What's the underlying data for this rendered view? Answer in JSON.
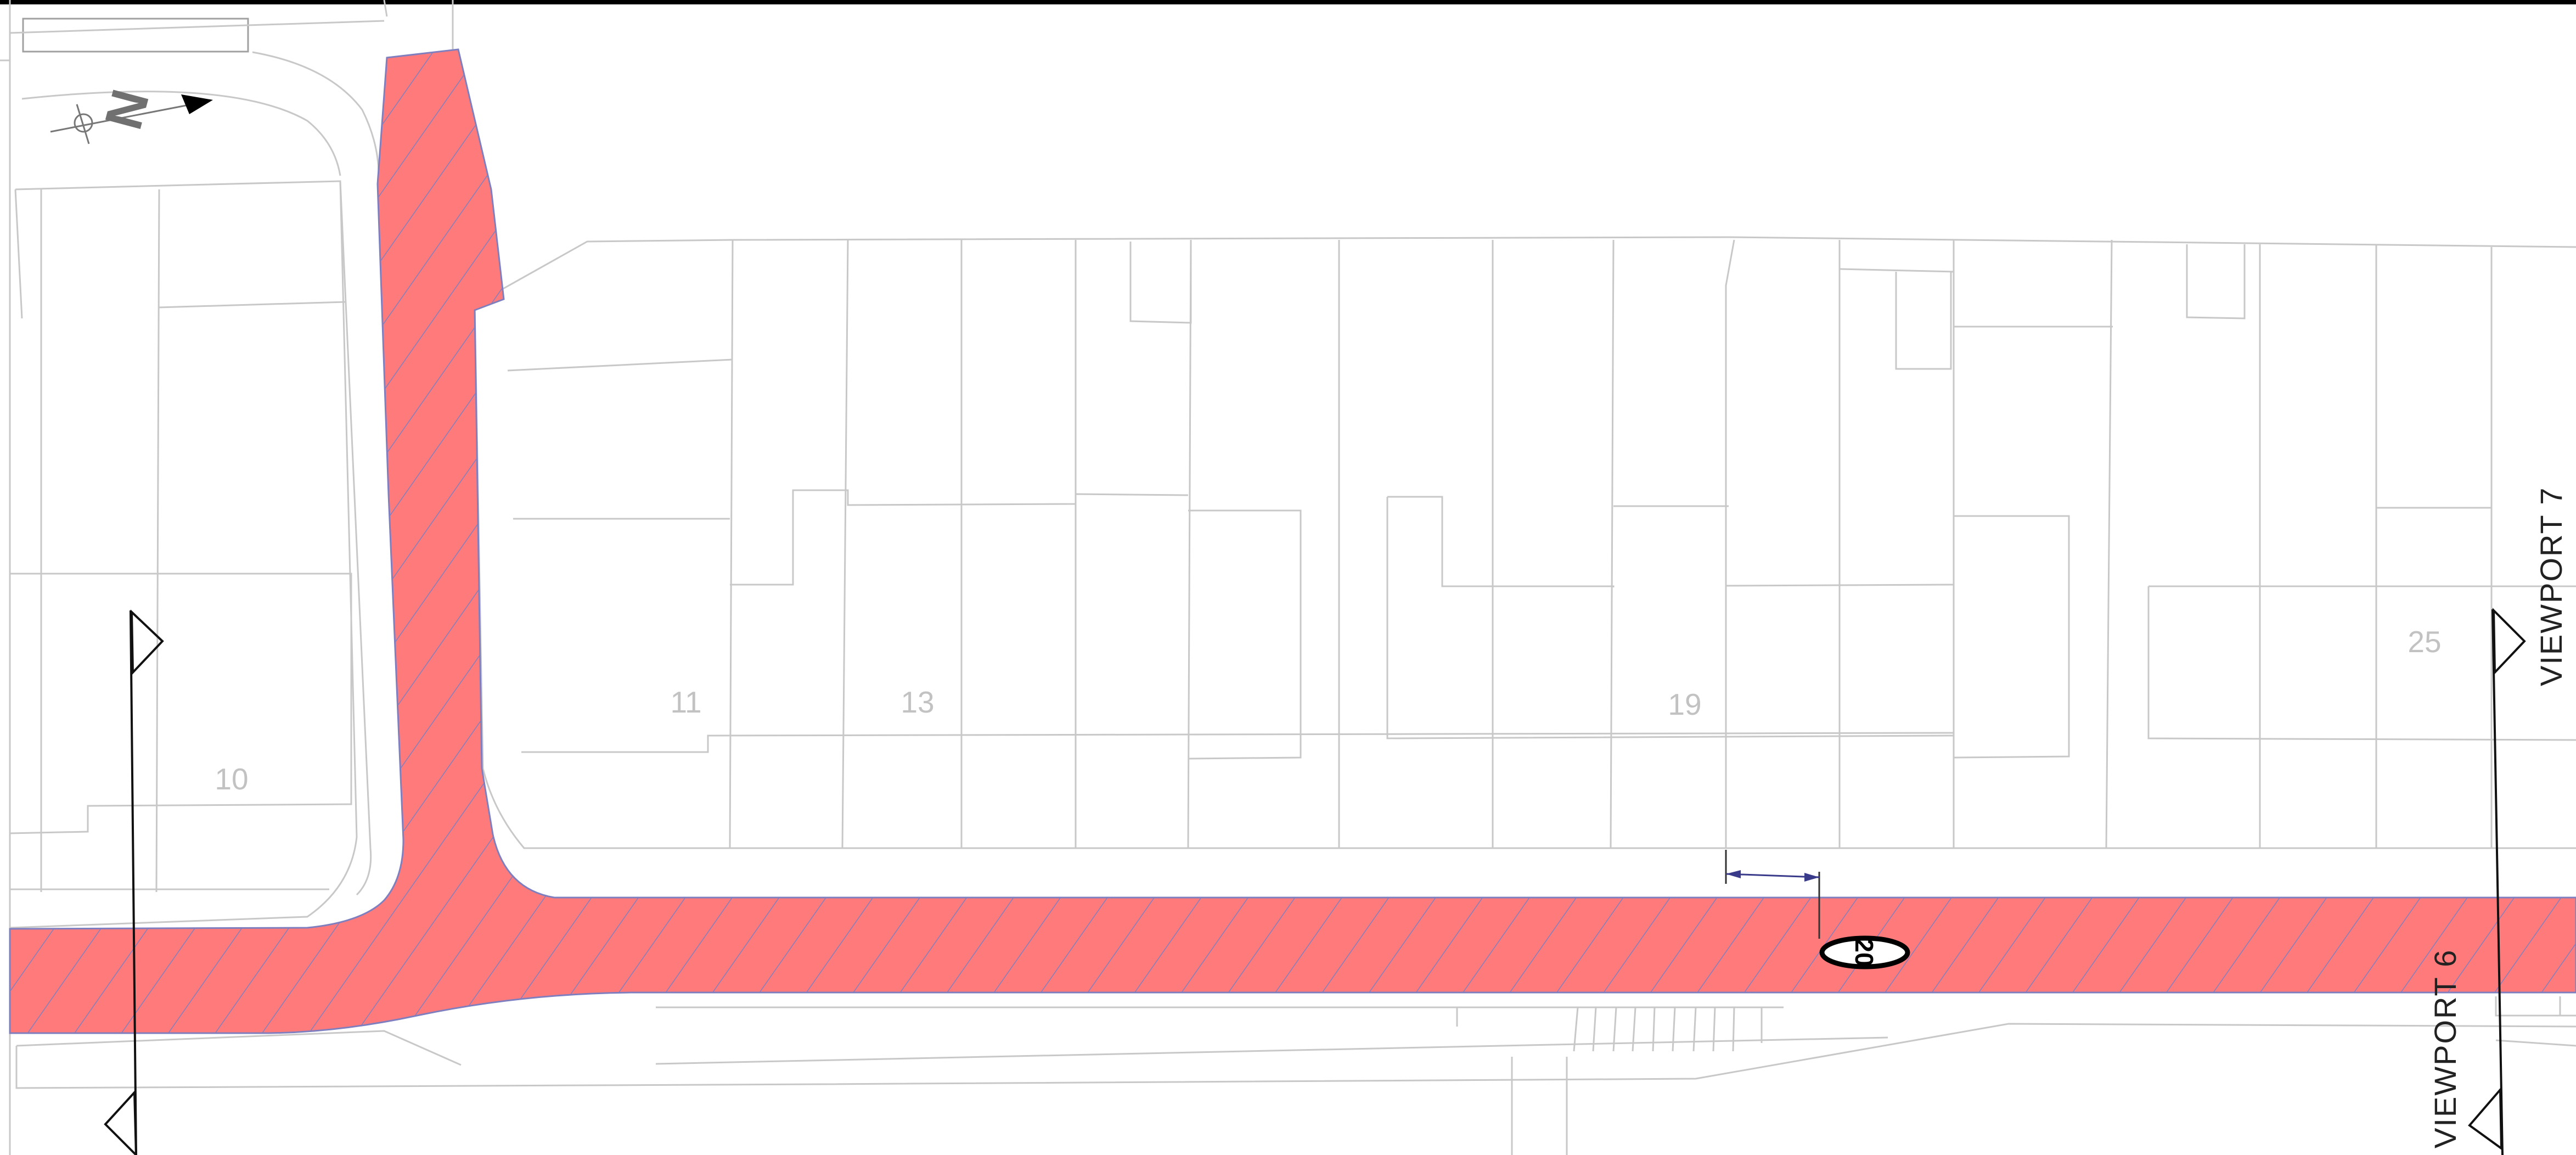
{
  "plan": {
    "north_letter": "N",
    "plot_numbers": [
      "10",
      "11",
      "13",
      "19",
      "25"
    ],
    "viewports": [
      "VIEWPORT 6",
      "VIEWPORT 7"
    ],
    "speed_limit": "20",
    "colors": {
      "highlight_fill": "#ff7b7b",
      "hatch": "#7f7fbf",
      "background": "#ffffff",
      "linework": "#c8c8c8",
      "text": "#222222"
    }
  }
}
